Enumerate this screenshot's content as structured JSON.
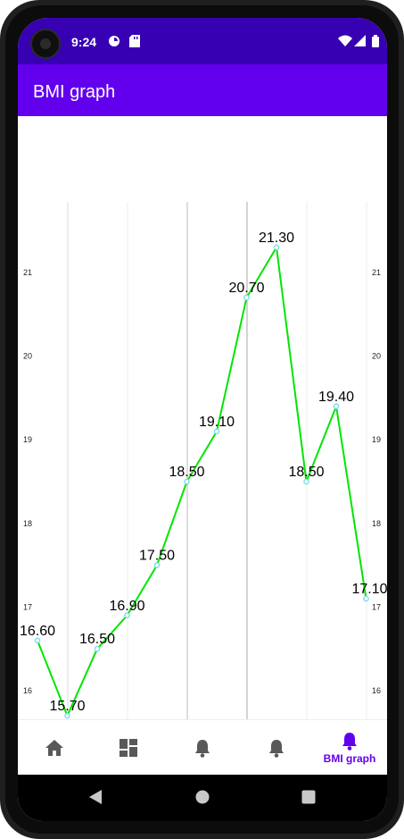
{
  "status_bar": {
    "time": "9:24"
  },
  "app_bar": {
    "title": "BMI graph"
  },
  "bottom_nav": {
    "items": [
      {
        "icon": "home-icon",
        "label": ""
      },
      {
        "icon": "dashboard-icon",
        "label": ""
      },
      {
        "icon": "bell-icon",
        "label": ""
      },
      {
        "icon": "bell-icon",
        "label": ""
      },
      {
        "icon": "bell-icon",
        "label": "BMI graph",
        "selected": true
      }
    ]
  },
  "colors": {
    "status_bar": "#3700b3",
    "app_bar": "#6200ee",
    "accent": "#6200ee",
    "line": "#00e600",
    "point": "#7fdcf0"
  },
  "chart_data": {
    "type": "line",
    "x": [
      1,
      2,
      3,
      4,
      5,
      6,
      7,
      8,
      9,
      10,
      11,
      12
    ],
    "series": [
      {
        "values": [
          16.6,
          15.7,
          16.5,
          16.9,
          17.5,
          18.5,
          19.1,
          20.7,
          21.3,
          18.5,
          19.4,
          17.1
        ],
        "labels": [
          "16.60",
          "15.70",
          "16.50",
          "16.90",
          "17.50",
          "18.50",
          "19.10",
          "20.70",
          "21.30",
          "18.50",
          "19.40",
          "17.10"
        ]
      }
    ],
    "y_ticks_left": [
      "16",
      "17",
      "18",
      "19",
      "20",
      "21"
    ],
    "y_ticks_right": [
      "16",
      "17",
      "18",
      "19",
      "20",
      "21"
    ],
    "grid": "vertical",
    "legend": "none"
  }
}
